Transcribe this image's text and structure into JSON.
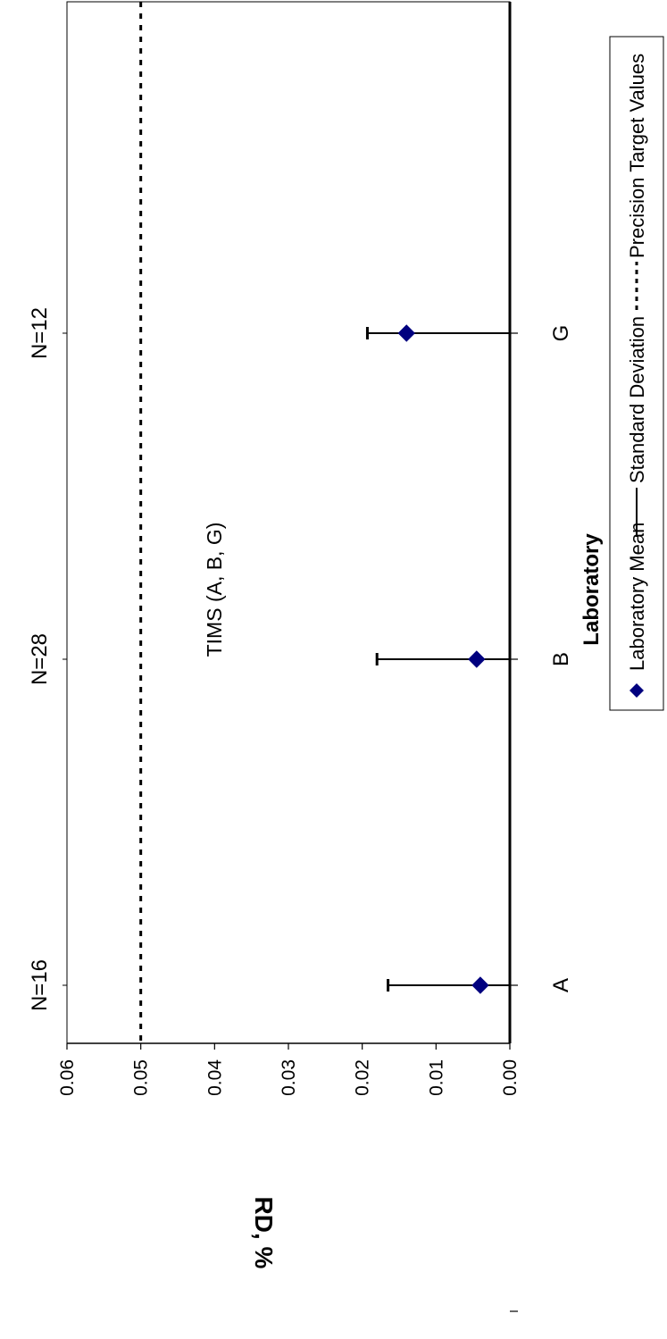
{
  "chart_data": {
    "type": "scatter",
    "orientation": "rotated-90-clockwise",
    "categories": [
      "A",
      "B",
      "G"
    ],
    "n_labels": [
      "N=16",
      "N=28",
      "N=12"
    ],
    "series": [
      {
        "name": "Laboratory Mean",
        "values": [
          0.004,
          0.0045,
          0.014
        ]
      },
      {
        "name": "Standard Deviation",
        "values": [
          0.0165,
          0.018,
          0.0193
        ]
      }
    ],
    "reference_line": {
      "name": "Precision Target Values",
      "value": 0.05
    },
    "annotation": "TIMS (A, B, G)",
    "xlabel": "Laboratory",
    "ylabel": "RD, %",
    "ylim": [
      0,
      0.06
    ],
    "yticks": [
      "0.00",
      "0.01",
      "0.02",
      "0.03",
      "0.04",
      "0.05",
      "0.06"
    ],
    "legend": {
      "position": "right",
      "items": [
        "Laboratory Mean",
        "Standard Deviation",
        "Precision Target Values"
      ]
    },
    "colors": {
      "marker": "#00007f",
      "line": "#000000"
    },
    "grid": false
  }
}
